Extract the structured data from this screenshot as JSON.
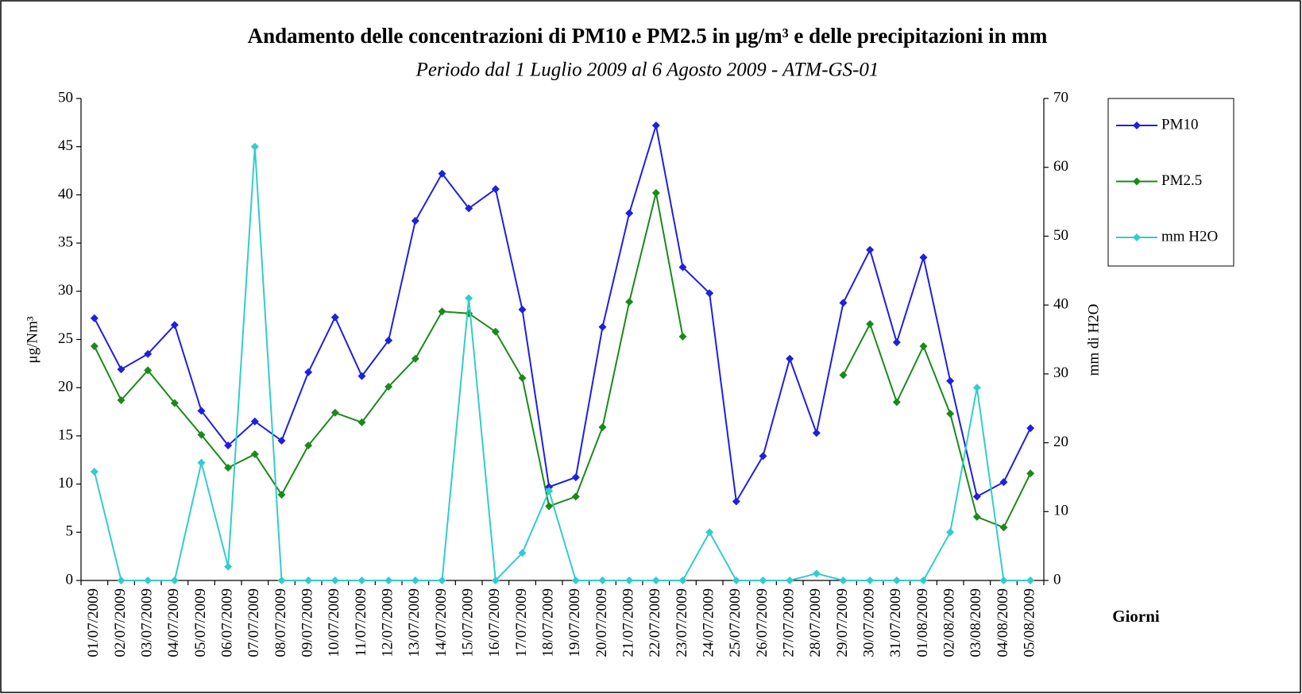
{
  "chart_data": {
    "type": "line",
    "title": "Andamento delle concentrazioni di PM10 e PM2.5 in μg/m³ e delle precipitazioni in mm",
    "subtitle": "Periodo dal 1 Luglio 2009 al 6 Agosto 2009 - ATM-GS-01",
    "y_label": "μg/Nm³",
    "y2_label": "mm di H2O",
    "x_label": "Giorni",
    "categories": [
      "01/07/2009",
      "02/07/2009",
      "03/07/2009",
      "04/07/2009",
      "05/07/2009",
      "06/07/2009",
      "07/07/2009",
      "08/07/2009",
      "09/07/2009",
      "10/07/2009",
      "11/07/2009",
      "12/07/2009",
      "13/07/2009",
      "14/07/2009",
      "15/07/2009",
      "16/07/2009",
      "17/07/2009",
      "18/07/2009",
      "19/07/2009",
      "20/07/2009",
      "21/07/2009",
      "22/07/2009",
      "23/07/2009",
      "24/07/2009",
      "25/07/2009",
      "26/07/2009",
      "27/07/2009",
      "28/07/2009",
      "29/07/2009",
      "30/07/2009",
      "31/07/2009",
      "01/08/2009",
      "02/08/2009",
      "03/08/2009",
      "04/08/2009",
      "05/08/2009"
    ],
    "series": [
      {
        "name": "PM10",
        "color": "#1f1fe0",
        "values": [
          27.2,
          21.9,
          23.5,
          26.5,
          17.6,
          14.0,
          16.5,
          14.5,
          21.6,
          27.3,
          21.2,
          24.9,
          37.3,
          42.2,
          38.6,
          40.6,
          28.1,
          9.7,
          10.7,
          26.3,
          38.1,
          47.2,
          32.5,
          29.8,
          8.2,
          12.9,
          23.0,
          15.3,
          28.8,
          34.3,
          24.7,
          33.5,
          20.7,
          8.7,
          10.2,
          15.8
        ]
      },
      {
        "name": "PM2.5",
        "color": "#1a8a1a",
        "values": [
          24.3,
          18.7,
          21.8,
          18.4,
          15.1,
          11.7,
          13.1,
          8.9,
          14.0,
          17.4,
          16.4,
          20.1,
          23.0,
          27.9,
          27.7,
          25.8,
          21.0,
          7.7,
          8.7,
          15.9,
          28.9,
          40.2,
          25.3,
          null,
          null,
          null,
          null,
          null,
          21.3,
          26.6,
          18.5,
          24.3,
          17.3,
          6.6,
          5.5,
          11.1
        ]
      },
      {
        "name": "mm H2O",
        "color": "#33cccc",
        "axis": "y2",
        "values": [
          15.8,
          0,
          0,
          0,
          17.1,
          2,
          63,
          0,
          0,
          0,
          0,
          0,
          0,
          0,
          41,
          0,
          4,
          13,
          0,
          0,
          0,
          0,
          0,
          7,
          0,
          0,
          0,
          1,
          0,
          0,
          0,
          0,
          7,
          28,
          0,
          0
        ]
      }
    ],
    "ylim": [
      0,
      50
    ],
    "yticks": [
      0,
      5,
      10,
      15,
      20,
      25,
      30,
      35,
      40,
      45,
      50
    ],
    "y2lim": [
      0,
      70
    ],
    "y2ticks": [
      0,
      10,
      20,
      30,
      40,
      50,
      60,
      70
    ],
    "legend": "right"
  }
}
